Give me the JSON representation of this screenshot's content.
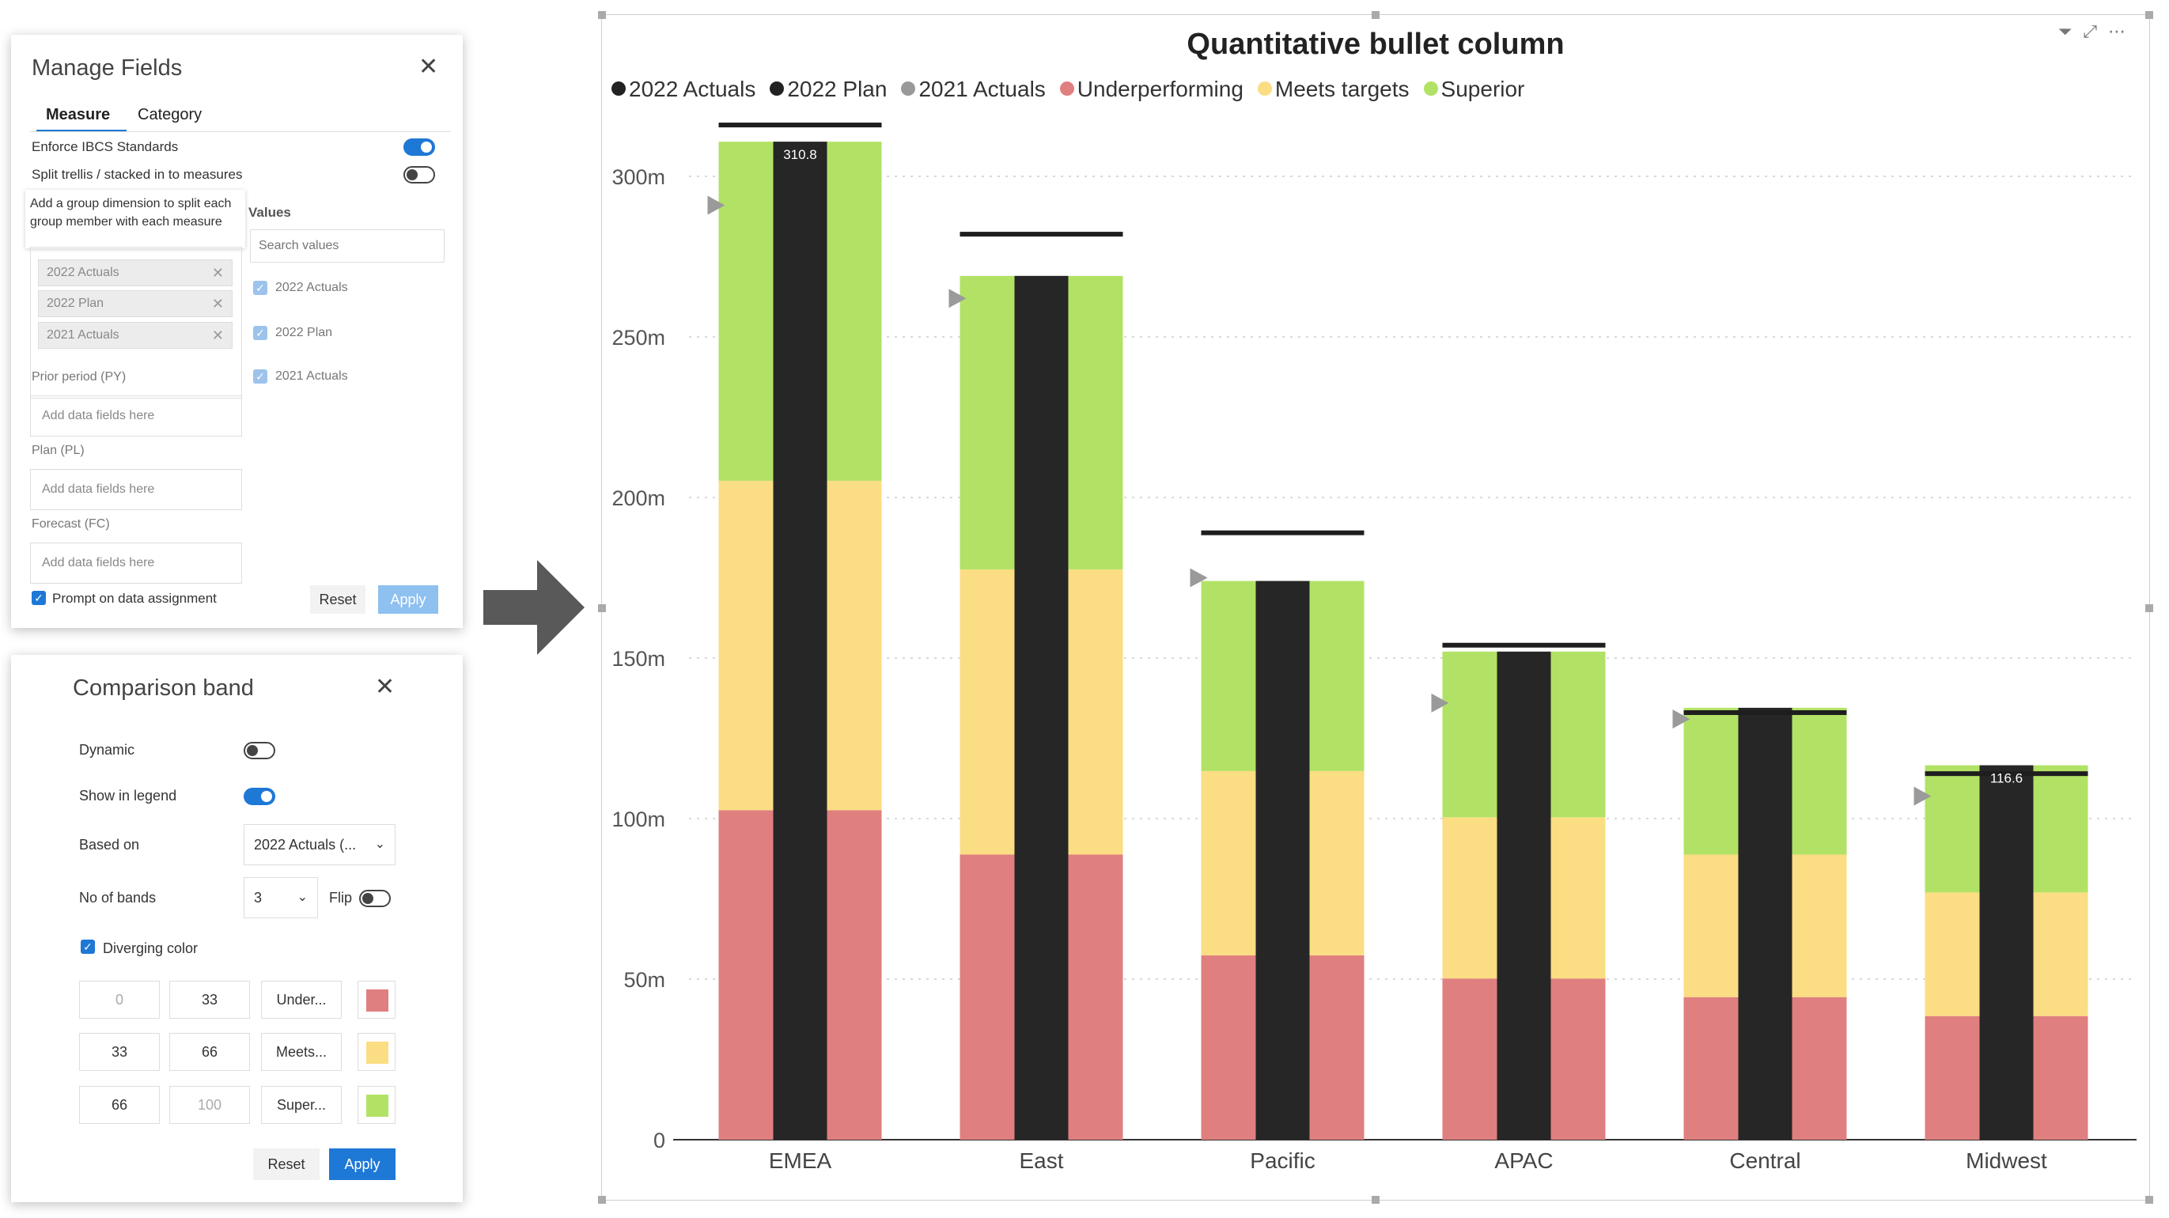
{
  "manage_fields": {
    "title": "Manage Fields",
    "tabs": [
      "Measure",
      "Category"
    ],
    "enforce_label": "Enforce IBCS Standards",
    "split_label": "Split trellis / stacked in to measures",
    "tooltip": "Add a group dimension to split each group member with each measure",
    "chips": [
      "2022 Actuals",
      "2022 Plan",
      "2021 Actuals"
    ],
    "values_label": "Values",
    "search_placeholder": "Search values",
    "value_items": [
      "2022 Actuals",
      "2022 Plan",
      "2021 Actuals"
    ],
    "prior_label": "Prior period  (PY)",
    "plan_label": "Plan  (PL)",
    "forecast_label": "Forecast  (FC)",
    "dropzone_text": "Add data fields here",
    "prompt_label": "Prompt on data assignment",
    "reset_label": "Reset",
    "apply_label": "Apply"
  },
  "comparison_band": {
    "title": "Comparison band",
    "dynamic_label": "Dynamic",
    "show_legend_label": "Show in legend",
    "based_on_label": "Based on",
    "based_on_value": "2022 Actuals (...",
    "bands_label": "No of bands",
    "bands_value": "3",
    "flip_label": "Flip",
    "diverging_label": "Diverging color",
    "rows": [
      {
        "from": "0",
        "to": "33",
        "name": "Under...",
        "color": "#e07f7f"
      },
      {
        "from": "33",
        "to": "66",
        "name": "Meets...",
        "color": "#fbdd83"
      },
      {
        "from": "66",
        "to": "100",
        "name": "Super...",
        "color": "#b2e265"
      }
    ],
    "reset_label": "Reset",
    "apply_label": "Apply"
  },
  "chart_data": {
    "type": "bar",
    "title": "Quantitative bullet column",
    "legend": [
      {
        "name": "2022 Actuals",
        "color": "#222222"
      },
      {
        "name": "2022 Plan",
        "color": "#222222"
      },
      {
        "name": "2021 Actuals",
        "color": "#999999"
      },
      {
        "name": "Underperforming",
        "color": "#e07f7f"
      },
      {
        "name": "Meets targets",
        "color": "#fbdd83"
      },
      {
        "name": "Superior",
        "color": "#b2e265"
      }
    ],
    "categories": [
      "EMEA",
      "East",
      "Pacific",
      "APAC",
      "Central",
      "Midwest"
    ],
    "series": [
      {
        "name": "2022 Actuals",
        "values": [
          310.8,
          269,
          174,
          152,
          134.5,
          116.6
        ]
      },
      {
        "name": "2022 Plan",
        "values": [
          316,
          282,
          189,
          154,
          133,
          114
        ]
      },
      {
        "name": "2021 Actuals",
        "values": [
          291,
          262,
          175,
          136,
          131,
          107
        ]
      },
      {
        "name": "Underperforming",
        "values": [
          102.6,
          88.8,
          57.4,
          50.2,
          44.4,
          38.5
        ]
      },
      {
        "name": "Meets targets",
        "values": [
          102.6,
          88.8,
          57.4,
          50.2,
          44.4,
          38.5
        ]
      },
      {
        "name": "Superior",
        "values": [
          105.6,
          91.4,
          59.2,
          51.6,
          45.7,
          39.6
        ]
      }
    ],
    "data_labels": {
      "EMEA": "310.8",
      "Midwest": "116.6"
    },
    "yticks": [
      "0",
      "50m",
      "100m",
      "150m",
      "200m",
      "250m",
      "300m"
    ],
    "ylim": [
      0,
      320
    ],
    "grid": true,
    "legend_position": "top-left"
  }
}
